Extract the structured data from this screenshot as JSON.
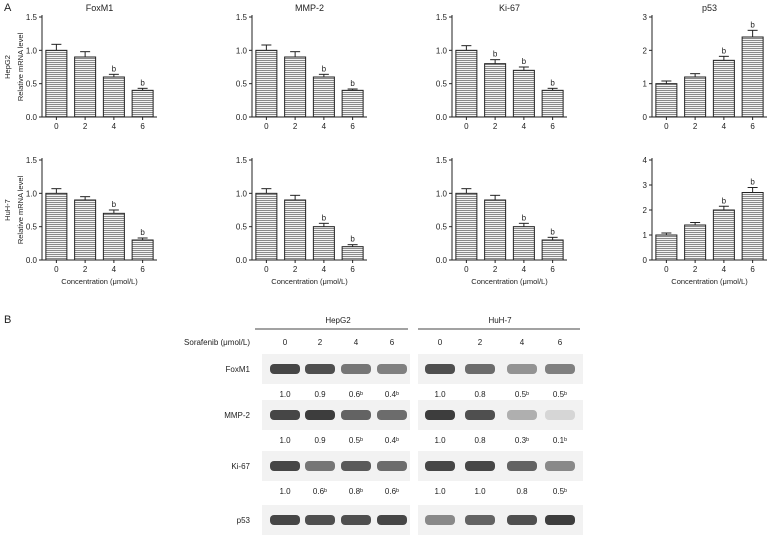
{
  "panel_a_label": "A",
  "panel_b_label": "B",
  "chart_data": [
    {
      "type": "bar",
      "row": "HepG2",
      "title": "FoxM1",
      "ylabel": "Relative mRNA level",
      "categories": [
        "0",
        "2",
        "4",
        "6"
      ],
      "values": [
        1.0,
        0.9,
        0.6,
        0.4
      ],
      "errors": [
        0.09,
        0.08,
        0.04,
        0.03
      ],
      "sig": [
        "",
        "",
        "b",
        "b"
      ],
      "ylim": [
        0,
        1.5
      ],
      "yticks": [
        "0.0",
        "0.5",
        "1.0",
        "1.5"
      ],
      "xlabel": ""
    },
    {
      "type": "bar",
      "row": "HepG2",
      "title": "MMP-2",
      "ylabel": "",
      "categories": [
        "0",
        "2",
        "4",
        "6"
      ],
      "values": [
        1.0,
        0.9,
        0.6,
        0.4
      ],
      "errors": [
        0.08,
        0.08,
        0.04,
        0.02
      ],
      "sig": [
        "",
        "",
        "b",
        "b"
      ],
      "ylim": [
        0,
        1.5
      ],
      "yticks": [
        "0.0",
        "0.5",
        "1.0",
        "1.5"
      ],
      "xlabel": ""
    },
    {
      "type": "bar",
      "row": "HepG2",
      "title": "Ki-67",
      "ylabel": "",
      "categories": [
        "0",
        "2",
        "4",
        "6"
      ],
      "values": [
        1.0,
        0.8,
        0.7,
        0.4
      ],
      "errors": [
        0.07,
        0.06,
        0.05,
        0.03
      ],
      "sig": [
        "",
        "b",
        "b",
        "b"
      ],
      "ylim": [
        0,
        1.5
      ],
      "yticks": [
        "0.0",
        "0.5",
        "1.0",
        "1.5"
      ],
      "xlabel": ""
    },
    {
      "type": "bar",
      "row": "HepG2",
      "title": "p53",
      "ylabel": "",
      "categories": [
        "0",
        "2",
        "4",
        "6"
      ],
      "values": [
        1.0,
        1.2,
        1.7,
        2.4
      ],
      "errors": [
        0.08,
        0.1,
        0.12,
        0.2
      ],
      "sig": [
        "",
        "",
        "b",
        "b"
      ],
      "ylim": [
        0,
        3
      ],
      "yticks": [
        "0",
        "1",
        "2",
        "3"
      ],
      "xlabel": ""
    },
    {
      "type": "bar",
      "row": "HuH-7",
      "title": "",
      "ylabel": "Relative mRNA level",
      "categories": [
        "0",
        "2",
        "4",
        "6"
      ],
      "values": [
        1.0,
        0.9,
        0.7,
        0.3
      ],
      "errors": [
        0.07,
        0.05,
        0.05,
        0.03
      ],
      "sig": [
        "",
        "",
        "b",
        "b"
      ],
      "ylim": [
        0,
        1.5
      ],
      "yticks": [
        "0.0",
        "0.5",
        "1.0",
        "1.5"
      ],
      "xlabel": "Concentration (μmol/L)"
    },
    {
      "type": "bar",
      "row": "HuH-7",
      "title": "",
      "ylabel": "",
      "categories": [
        "0",
        "2",
        "4",
        "6"
      ],
      "values": [
        1.0,
        0.9,
        0.5,
        0.2
      ],
      "errors": [
        0.07,
        0.07,
        0.05,
        0.03
      ],
      "sig": [
        "",
        "",
        "b",
        "b"
      ],
      "ylim": [
        0,
        1.5
      ],
      "yticks": [
        "0.0",
        "0.5",
        "1.0",
        "1.5"
      ],
      "xlabel": "Concentration (μmol/L)"
    },
    {
      "type": "bar",
      "row": "HuH-7",
      "title": "",
      "ylabel": "",
      "categories": [
        "0",
        "2",
        "4",
        "6"
      ],
      "values": [
        1.0,
        0.9,
        0.5,
        0.3
      ],
      "errors": [
        0.07,
        0.07,
        0.05,
        0.04
      ],
      "sig": [
        "",
        "",
        "b",
        "b"
      ],
      "ylim": [
        0,
        1.5
      ],
      "yticks": [
        "0.0",
        "0.5",
        "1.0",
        "1.5"
      ],
      "xlabel": "Concentration (μmol/L)"
    },
    {
      "type": "bar",
      "row": "HuH-7",
      "title": "",
      "ylabel": "",
      "categories": [
        "0",
        "2",
        "4",
        "6"
      ],
      "values": [
        1.0,
        1.4,
        2.0,
        2.7
      ],
      "errors": [
        0.08,
        0.1,
        0.15,
        0.2
      ],
      "sig": [
        "",
        "",
        "b",
        "b"
      ],
      "ylim": [
        0,
        4
      ],
      "yticks": [
        "0",
        "1",
        "2",
        "3",
        "4"
      ],
      "xlabel": "Concentration (μmol/L)"
    }
  ],
  "blot": {
    "cell_lines": [
      "HepG2",
      "HuH-7"
    ],
    "treatment_label": "Sorafenib (μmol/L)",
    "concentrations": [
      "0",
      "2",
      "4",
      "6",
      "0",
      "2",
      "4",
      "6"
    ],
    "proteins": [
      "FoxM1",
      "MMP-2",
      "Ki-67",
      "p53"
    ],
    "ratios": [
      [
        "1.0",
        "0.9",
        "0.6ᵇ",
        "0.4ᵇ",
        "1.0",
        "0.8",
        "0.5ᵇ",
        "0.5ᵇ"
      ],
      [
        "1.0",
        "0.9",
        "0.5ᵇ",
        "0.4ᵇ",
        "1.0",
        "0.8",
        "0.3ᵇ",
        "0.1ᵇ"
      ],
      [
        "1.0",
        "0.6ᵇ",
        "0.8ᵇ",
        "0.6ᵇ",
        "1.0",
        "1.0",
        "0.8",
        "0.5ᵇ"
      ]
    ]
  }
}
